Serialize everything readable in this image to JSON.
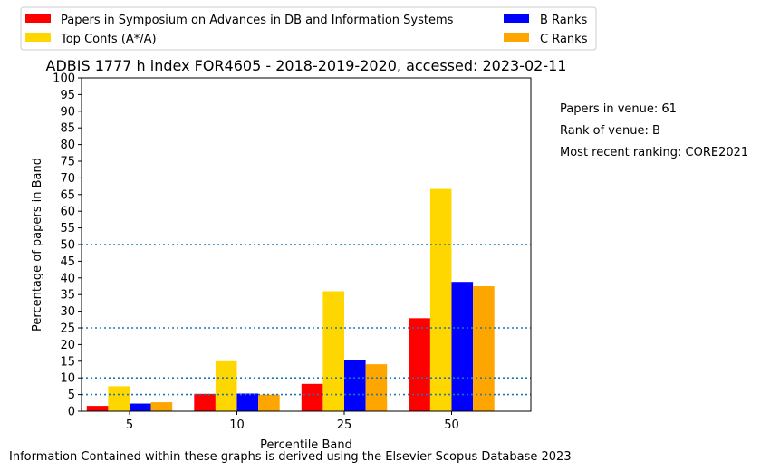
{
  "chart_data": {
    "type": "bar",
    "title": "ADBIS 1777 h index FOR4605 - 2018-2019-2020, accessed: 2023-02-11",
    "xlabel": "Percentile Band",
    "ylabel": "Percentage of papers in Band",
    "categories": [
      "5",
      "10",
      "25",
      "50"
    ],
    "ylim": [
      0,
      100
    ],
    "yticks": [
      0,
      5,
      10,
      15,
      20,
      25,
      30,
      35,
      40,
      45,
      50,
      55,
      60,
      65,
      70,
      75,
      80,
      85,
      90,
      95,
      100
    ],
    "reference_lines": [
      5,
      10,
      25,
      50
    ],
    "reference_line_color": "#1f77b4",
    "grid": false,
    "legend_position": "top, two columns",
    "series": [
      {
        "name": "Papers in Symposium on Advances in DB and Information Systems",
        "color": "#ff0000",
        "values": [
          1.6,
          5.2,
          8.2,
          27.9
        ]
      },
      {
        "name": "Top Confs (A*/A)",
        "color": "#ffd700",
        "values": [
          7.5,
          15.0,
          36.0,
          66.7
        ]
      },
      {
        "name": "B Ranks",
        "color": "#0000ff",
        "values": [
          2.3,
          5.3,
          15.4,
          38.8
        ]
      },
      {
        "name": "C Ranks",
        "color": "#ffa500",
        "values": [
          2.7,
          5.0,
          14.1,
          37.5
        ]
      }
    ]
  },
  "side_info": [
    "Papers in venue: 61",
    "Rank of venue: B",
    "Most recent ranking: CORE2021"
  ],
  "footer": "Information Contained within these graphs is derived using the Elsevier Scopus Database 2023"
}
